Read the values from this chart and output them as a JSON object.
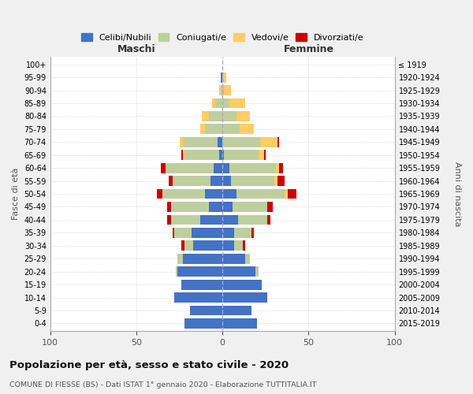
{
  "age_groups": [
    "0-4",
    "5-9",
    "10-14",
    "15-19",
    "20-24",
    "25-29",
    "30-34",
    "35-39",
    "40-44",
    "45-49",
    "50-54",
    "55-59",
    "60-64",
    "65-69",
    "70-74",
    "75-79",
    "80-84",
    "85-89",
    "90-94",
    "95-99",
    "100+"
  ],
  "birth_years": [
    "2015-2019",
    "2010-2014",
    "2005-2009",
    "2000-2004",
    "1995-1999",
    "1990-1994",
    "1985-1989",
    "1980-1984",
    "1975-1979",
    "1970-1974",
    "1965-1969",
    "1960-1964",
    "1955-1959",
    "1950-1954",
    "1945-1949",
    "1940-1944",
    "1935-1939",
    "1930-1934",
    "1925-1929",
    "1920-1924",
    "≤ 1919"
  ],
  "maschi": {
    "celibi": [
      22,
      19,
      28,
      24,
      26,
      23,
      17,
      18,
      13,
      8,
      10,
      7,
      5,
      2,
      3,
      0,
      0,
      0,
      0,
      1,
      0
    ],
    "coniugati": [
      0,
      0,
      0,
      0,
      1,
      3,
      5,
      10,
      17,
      22,
      25,
      22,
      28,
      20,
      20,
      10,
      8,
      4,
      1,
      0,
      0
    ],
    "vedovi": [
      0,
      0,
      0,
      0,
      0,
      0,
      0,
      0,
      0,
      0,
      0,
      0,
      0,
      1,
      2,
      3,
      4,
      2,
      1,
      0,
      0
    ],
    "divorziati": [
      0,
      0,
      0,
      0,
      0,
      0,
      2,
      1,
      2,
      2,
      3,
      2,
      3,
      1,
      0,
      0,
      0,
      0,
      0,
      0,
      0
    ]
  },
  "femmine": {
    "nubili": [
      20,
      17,
      26,
      23,
      19,
      13,
      7,
      7,
      9,
      6,
      8,
      5,
      4,
      1,
      0,
      0,
      0,
      0,
      0,
      0,
      0
    ],
    "coniugate": [
      0,
      0,
      0,
      0,
      2,
      3,
      5,
      10,
      17,
      20,
      28,
      25,
      27,
      20,
      22,
      10,
      8,
      4,
      1,
      1,
      0
    ],
    "vedove": [
      0,
      0,
      0,
      0,
      0,
      0,
      0,
      0,
      0,
      0,
      2,
      2,
      2,
      3,
      10,
      8,
      8,
      9,
      4,
      1,
      0
    ],
    "divorziate": [
      0,
      0,
      0,
      0,
      0,
      0,
      1,
      1,
      2,
      3,
      5,
      4,
      2,
      1,
      1,
      0,
      0,
      0,
      0,
      0,
      0
    ]
  },
  "colors": {
    "celibi": "#4472C4",
    "coniugati": "#BFCE9E",
    "vedovi": "#FFCC66",
    "divorziati": "#CC0000"
  },
  "xlim": 100,
  "title": "Popolazione per età, sesso e stato civile - 2020",
  "subtitle": "COMUNE DI FIESSE (BS) - Dati ISTAT 1° gennaio 2020 - Elaborazione TUTTITALIA.IT",
  "xlabel_left": "Maschi",
  "xlabel_right": "Femmine",
  "ylabel": "Fasce di età",
  "ylabel_right": "Anni di nascita",
  "bg_color": "#f0f0f0",
  "plot_bg_color": "#ffffff"
}
